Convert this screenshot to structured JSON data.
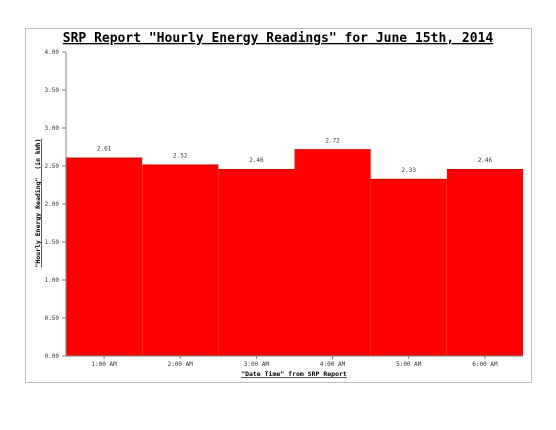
{
  "chart_data": {
    "type": "bar",
    "title": "SRP Report \"Hourly Energy Readings\" for June 15th, 2014",
    "xlabel": "\"Date Time\" from SRP Report",
    "ylabel": "\"Hourly Energy Reading\"  (in kWh)",
    "categories": [
      "1:00 AM",
      "2:00 AM",
      "3:00 AM",
      "4:00 AM",
      "5:00 AM",
      "6:00 AM"
    ],
    "values": [
      2.61,
      2.52,
      2.46,
      2.72,
      2.33,
      2.46
    ],
    "data_labels": [
      "2.61",
      "2.52",
      "2.46",
      "2.72",
      "2.33",
      "2.46"
    ],
    "ylim": [
      0,
      4
    ],
    "yticks": [
      "0.00",
      "0.50",
      "1.00",
      "1.50",
      "2.00",
      "2.50",
      "3.00",
      "3.50",
      "4.00"
    ],
    "grid": false,
    "bar_color": "#ff0000"
  }
}
